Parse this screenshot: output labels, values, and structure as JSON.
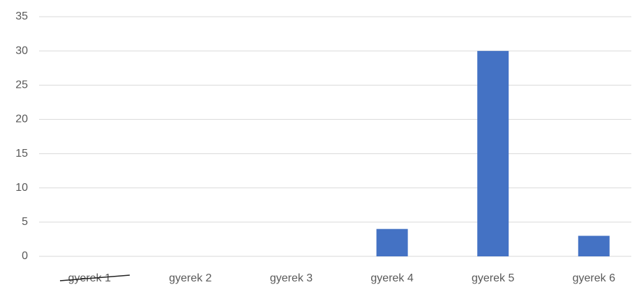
{
  "chart_data": {
    "type": "bar",
    "categories": [
      "gyerek 1",
      "gyerek 2",
      "gyerek 3",
      "gyerek 4",
      "gyerek 5",
      "gyerek 6"
    ],
    "values": [
      0,
      0,
      0,
      4,
      30,
      3
    ],
    "color": "#4472c4",
    "ylim": [
      0,
      35
    ],
    "yticks": [
      0,
      5,
      10,
      15,
      20,
      25,
      30,
      35
    ],
    "grid": true
  }
}
